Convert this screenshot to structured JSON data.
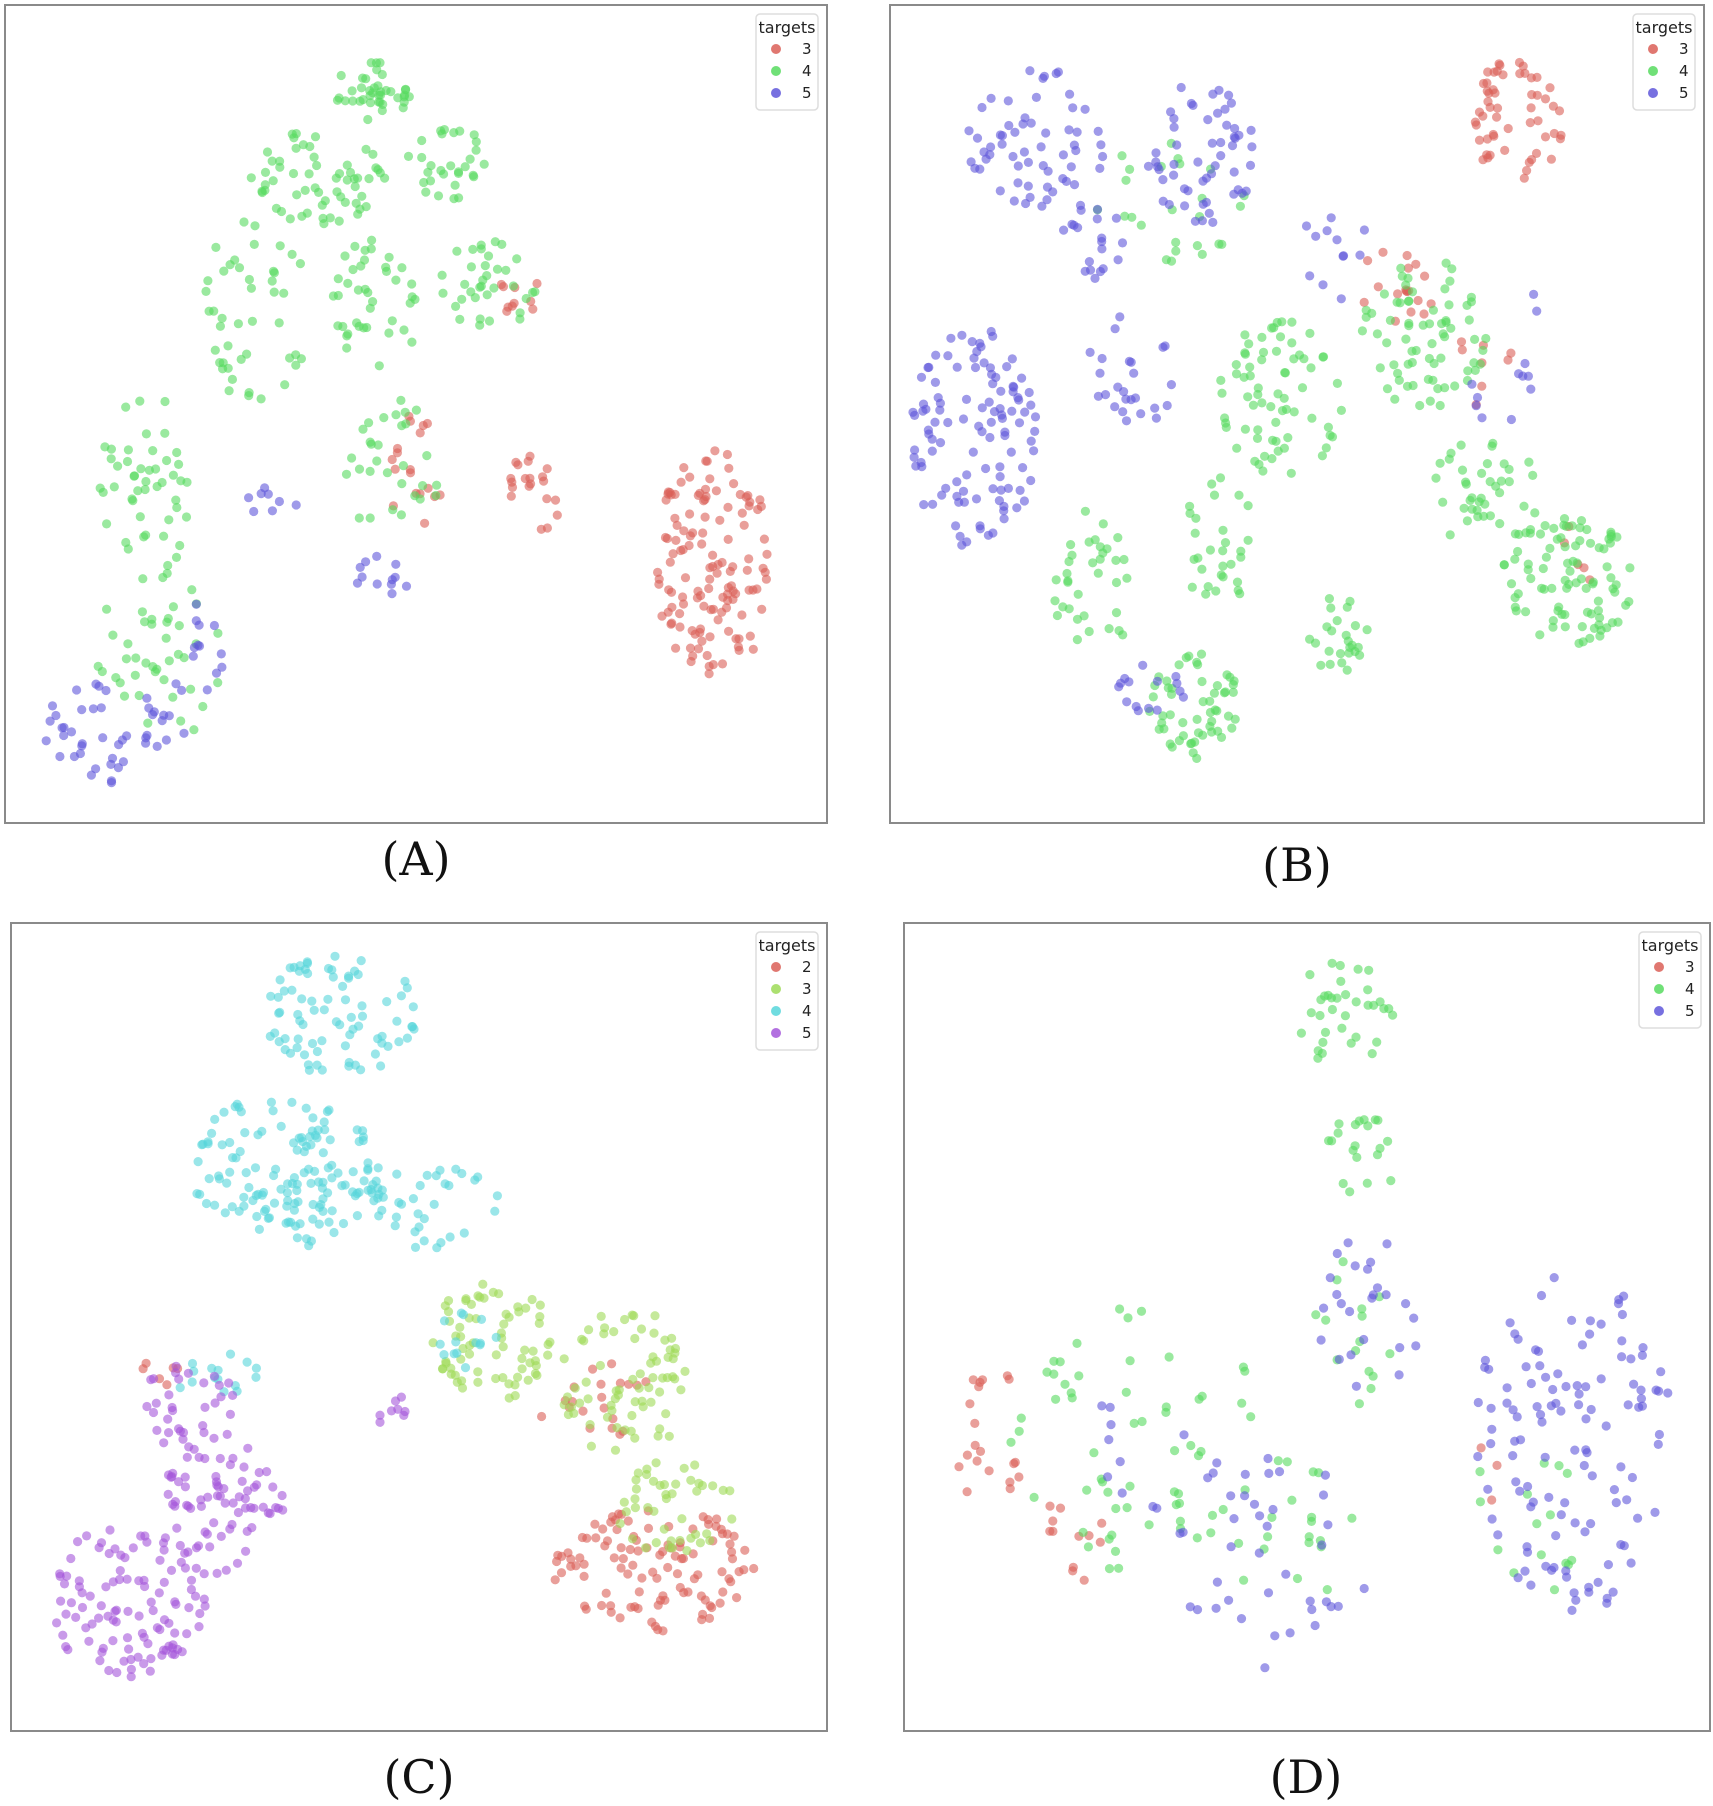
{
  "chart_data": [
    {
      "type": "scatter",
      "panel": "A",
      "caption": "(A)",
      "legend": {
        "title": "targets",
        "placement": "top-right"
      },
      "grid": false,
      "xlim": [
        0,
        100
      ],
      "ylim": [
        0,
        100
      ],
      "series": [
        {
          "name": "3",
          "color": "#db5f57",
          "clusters": [
            {
              "cx": 87.5,
              "cy": 31,
              "rx": 7.5,
              "ry": 15,
              "n": 130
            },
            {
              "cx": 65,
              "cy": 40,
              "rx": 5,
              "ry": 5,
              "n": 20
            },
            {
              "cx": 50,
              "cy": 42,
              "rx": 3.5,
              "ry": 8,
              "n": 18
            },
            {
              "cx": 63,
              "cy": 66,
              "rx": 3,
              "ry": 4,
              "n": 10
            }
          ]
        },
        {
          "name": "4",
          "color": "#57db5f",
          "clusters": [
            {
              "cx": 45,
              "cy": 91,
              "rx": 5.5,
              "ry": 4,
              "n": 40
            },
            {
              "cx": 38,
              "cy": 80,
              "rx": 9,
              "ry": 6,
              "n": 60
            },
            {
              "cx": 54,
              "cy": 82,
              "rx": 5,
              "ry": 5,
              "n": 30
            },
            {
              "cx": 30,
              "cy": 63,
              "rx": 7,
              "ry": 12,
              "n": 45
            },
            {
              "cx": 45,
              "cy": 64,
              "rx": 6,
              "ry": 8,
              "n": 40
            },
            {
              "cx": 59,
              "cy": 66,
              "rx": 6,
              "ry": 6,
              "n": 35
            },
            {
              "cx": 47,
              "cy": 43,
              "rx": 6,
              "ry": 9,
              "n": 30
            },
            {
              "cx": 16,
              "cy": 40,
              "rx": 6,
              "ry": 13,
              "n": 50
            },
            {
              "cx": 18,
              "cy": 19,
              "rx": 9,
              "ry": 10,
              "n": 40
            }
          ]
        },
        {
          "name": "5",
          "color": "#5f57db",
          "clusters": [
            {
              "cx": 12,
              "cy": 10,
              "rx": 9,
              "ry": 7,
              "n": 45
            },
            {
              "cx": 22,
              "cy": 20,
              "rx": 4,
              "ry": 6,
              "n": 14
            },
            {
              "cx": 32,
              "cy": 38,
              "rx": 4,
              "ry": 3,
              "n": 8
            },
            {
              "cx": 47,
              "cy": 30,
              "rx": 3,
              "ry": 3,
              "n": 8
            },
            {
              "cx": 44,
              "cy": 30,
              "rx": 2,
              "ry": 2,
              "n": 4
            }
          ]
        }
      ]
    },
    {
      "type": "scatter",
      "panel": "B",
      "caption": "(B)",
      "legend": {
        "title": "targets",
        "placement": "top-right"
      },
      "grid": false,
      "xlim": [
        0,
        100
      ],
      "ylim": [
        0,
        100
      ],
      "series": [
        {
          "name": "3",
          "color": "#db5f57",
          "clusters": [
            {
              "cx": 78,
              "cy": 87,
              "rx": 6,
              "ry": 8,
              "n": 55
            },
            {
              "cx": 63,
              "cy": 66,
              "rx": 5,
              "ry": 6,
              "n": 18
            },
            {
              "cx": 72,
              "cy": 56,
              "rx": 6,
              "ry": 6,
              "n": 8
            },
            {
              "cx": 85,
              "cy": 33,
              "rx": 4,
              "ry": 5,
              "n": 5
            }
          ]
        },
        {
          "name": "4",
          "color": "#57db5f",
          "clusters": [
            {
              "cx": 85,
              "cy": 29,
              "rx": 9,
              "ry": 8,
              "n": 90
            },
            {
              "cx": 74,
              "cy": 40,
              "rx": 7,
              "ry": 7,
              "n": 40
            },
            {
              "cx": 66,
              "cy": 60,
              "rx": 8,
              "ry": 10,
              "n": 70
            },
            {
              "cx": 48,
              "cy": 52,
              "rx": 8,
              "ry": 10,
              "n": 70
            },
            {
              "cx": 37,
              "cy": 13,
              "rx": 6,
              "ry": 7,
              "n": 55
            },
            {
              "cx": 24,
              "cy": 28,
              "rx": 5,
              "ry": 10,
              "n": 35
            },
            {
              "cx": 55,
              "cy": 22,
              "rx": 4,
              "ry": 5,
              "n": 25
            },
            {
              "cx": 40,
              "cy": 34,
              "rx": 5,
              "ry": 8,
              "n": 30
            },
            {
              "cx": 34,
              "cy": 78,
              "rx": 10,
              "ry": 9,
              "n": 25
            }
          ]
        },
        {
          "name": "5",
          "color": "#5f57db",
          "clusters": [
            {
              "cx": 17,
              "cy": 85,
              "rx": 9,
              "ry": 9,
              "n": 60
            },
            {
              "cx": 38,
              "cy": 83,
              "rx": 7,
              "ry": 9,
              "n": 55
            },
            {
              "cx": 24,
              "cy": 72,
              "rx": 4,
              "ry": 5,
              "n": 20
            },
            {
              "cx": 9,
              "cy": 47,
              "rx": 8,
              "ry": 14,
              "n": 110
            },
            {
              "cx": 29,
              "cy": 56,
              "rx": 6,
              "ry": 8,
              "n": 25
            },
            {
              "cx": 32,
              "cy": 16,
              "rx": 5,
              "ry": 4,
              "n": 15
            },
            {
              "cx": 55,
              "cy": 70,
              "rx": 5,
              "ry": 6,
              "n": 12
            },
            {
              "cx": 76,
              "cy": 58,
              "rx": 6,
              "ry": 10,
              "n": 12
            }
          ]
        }
      ]
    },
    {
      "type": "scatter",
      "panel": "C",
      "caption": "(C)",
      "legend": {
        "title": "targets",
        "placement": "top-right"
      },
      "grid": false,
      "xlim": [
        0,
        100
      ],
      "ylim": [
        0,
        100
      ],
      "series": [
        {
          "name": "2",
          "color": "#db5f57",
          "clusters": [
            {
              "cx": 80,
              "cy": 19,
              "rx": 13,
              "ry": 8,
              "n": 110
            },
            {
              "cx": 72,
              "cy": 40,
              "rx": 8,
              "ry": 6,
              "n": 20
            },
            {
              "cx": 17,
              "cy": 44,
              "rx": 3,
              "ry": 2,
              "n": 6
            }
          ]
        },
        {
          "name": "3",
          "color": "#9edb57",
          "clusters": [
            {
              "cx": 59,
              "cy": 48,
              "rx": 8,
              "ry": 8,
              "n": 70
            },
            {
              "cx": 76,
              "cy": 43,
              "rx": 8,
              "ry": 10,
              "n": 70
            },
            {
              "cx": 82,
              "cy": 27,
              "rx": 8,
              "ry": 6,
              "n": 45
            }
          ]
        },
        {
          "name": "4",
          "color": "#57d6db",
          "clusters": [
            {
              "cx": 40,
              "cy": 90,
              "rx": 10,
              "ry": 8,
              "n": 80
            },
            {
              "cx": 33,
              "cy": 70,
              "rx": 12,
              "ry": 10,
              "n": 140
            },
            {
              "cx": 51,
              "cy": 66,
              "rx": 9,
              "ry": 6,
              "n": 40
            },
            {
              "cx": 24,
              "cy": 44,
              "rx": 6,
              "ry": 3,
              "n": 15
            },
            {
              "cx": 55,
              "cy": 48,
              "rx": 5,
              "ry": 4,
              "n": 14
            }
          ]
        },
        {
          "name": "5",
          "color": "#a557db",
          "clusters": [
            {
              "cx": 13,
              "cy": 15,
              "rx": 10,
              "ry": 10,
              "n": 110
            },
            {
              "cx": 24,
              "cy": 28,
              "rx": 6,
              "ry": 10,
              "n": 65
            },
            {
              "cx": 31,
              "cy": 28,
              "rx": 4,
              "ry": 4,
              "n": 12
            },
            {
              "cx": 21,
              "cy": 40,
              "rx": 6,
              "ry": 6,
              "n": 30
            },
            {
              "cx": 46,
              "cy": 40,
              "rx": 3,
              "ry": 3,
              "n": 8
            }
          ]
        }
      ]
    },
    {
      "type": "scatter",
      "panel": "D",
      "caption": "(D)",
      "legend": {
        "title": "targets",
        "placement": "top-right"
      },
      "grid": false,
      "xlim": [
        0,
        100
      ],
      "ylim": [
        0,
        100
      ],
      "series": [
        {
          "name": "3",
          "color": "#db5f57",
          "clusters": [
            {
              "cx": 9,
              "cy": 36,
              "rx": 5,
              "ry": 10,
              "n": 20
            },
            {
              "cx": 20,
              "cy": 24,
              "rx": 4,
              "ry": 7,
              "n": 12
            },
            {
              "cx": 73,
              "cy": 30,
              "rx": 2,
              "ry": 5,
              "n": 3
            }
          ]
        },
        {
          "name": "4",
          "color": "#57db5f",
          "clusters": [
            {
              "cx": 55,
              "cy": 90,
              "rx": 7,
              "ry": 7,
              "n": 35
            },
            {
              "cx": 57,
              "cy": 72,
              "rx": 5,
              "ry": 5,
              "n": 20
            },
            {
              "cx": 28,
              "cy": 36,
              "rx": 16,
              "ry": 18,
              "n": 60
            },
            {
              "cx": 48,
              "cy": 24,
              "rx": 8,
              "ry": 10,
              "n": 20
            },
            {
              "cx": 57,
              "cy": 50,
              "rx": 6,
              "ry": 10,
              "n": 15
            },
            {
              "cx": 78,
              "cy": 25,
              "rx": 7,
              "ry": 15,
              "n": 15
            }
          ]
        },
        {
          "name": "5",
          "color": "#5f57db",
          "clusters": [
            {
              "cx": 84,
              "cy": 35,
              "rx": 13,
              "ry": 22,
              "n": 120
            },
            {
              "cx": 44,
              "cy": 20,
              "rx": 14,
              "ry": 14,
              "n": 40
            },
            {
              "cx": 58,
              "cy": 52,
              "rx": 7,
              "ry": 10,
              "n": 25
            },
            {
              "cx": 29,
              "cy": 35,
              "rx": 7,
              "ry": 10,
              "n": 10
            }
          ]
        }
      ]
    }
  ]
}
